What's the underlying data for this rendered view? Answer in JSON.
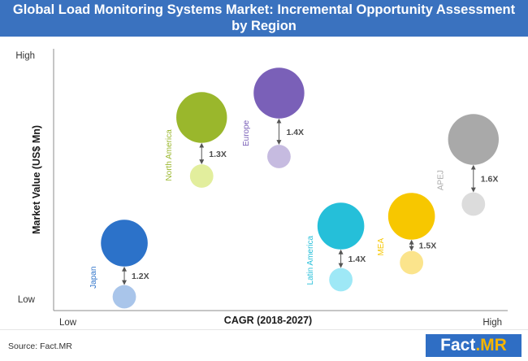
{
  "title": {
    "line1": "Global Load Monitoring Systems Market: Incremental Opportunity Assessment",
    "line2": "by Region"
  },
  "colors": {
    "title_bg": "#3a72bf",
    "logo_bg": "#2f6ec4"
  },
  "footer": {
    "source": "Source: Fact.MR",
    "logo_main": "Fact",
    "logo_accent": ".MR"
  },
  "chart_data": {
    "type": "scatter",
    "variant": "bubble",
    "xlabel": "CAGR (2018-2027)",
    "ylabel": "Market Value (US$ Mn)",
    "x_ticks": [
      "Low",
      "High"
    ],
    "y_ticks": [
      "High",
      "Low"
    ],
    "xlim": [
      0,
      10
    ],
    "ylim": [
      0,
      10
    ],
    "series": [
      {
        "name": "Japan",
        "growth_label": "1.2X",
        "x": 1.6,
        "y_current": 2.3,
        "y_future": 0.1,
        "size_current": 1.2,
        "size_future": 0.6,
        "color_current": "#2c72c9",
        "color_future": "#a9c5ea"
      },
      {
        "name": "North America",
        "growth_label": "1.3X",
        "x": 3.35,
        "y_current": 7.45,
        "y_future": 5.05,
        "size_current": 1.3,
        "size_future": 0.6,
        "color_current": "#9ab72c",
        "color_future": "#e2ee9d"
      },
      {
        "name": "Europe",
        "growth_label": "1.4X",
        "x": 5.1,
        "y_current": 8.45,
        "y_future": 5.85,
        "size_current": 1.3,
        "size_future": 0.6,
        "color_current": "#7a60b8",
        "color_future": "#c6bbe0"
      },
      {
        "name": "Latin America",
        "growth_label": "1.4X",
        "x": 6.5,
        "y_current": 3.0,
        "y_future": 0.8,
        "size_current": 1.2,
        "size_future": 0.6,
        "color_current": "#25bfd9",
        "color_future": "#9ee8f6"
      },
      {
        "name": "MEA",
        "growth_label": "1.5X",
        "x": 8.1,
        "y_current": 3.4,
        "y_future": 1.5,
        "size_current": 1.2,
        "size_future": 0.6,
        "color_current": "#f7c700",
        "color_future": "#fbe48c"
      },
      {
        "name": "APEJ",
        "growth_label": "1.6X",
        "x": 9.5,
        "y_current": 6.55,
        "y_future": 3.9,
        "size_current": 1.3,
        "size_future": 0.6,
        "color_current": "#a9a9a9",
        "color_future": "#dcdcdc"
      }
    ]
  }
}
